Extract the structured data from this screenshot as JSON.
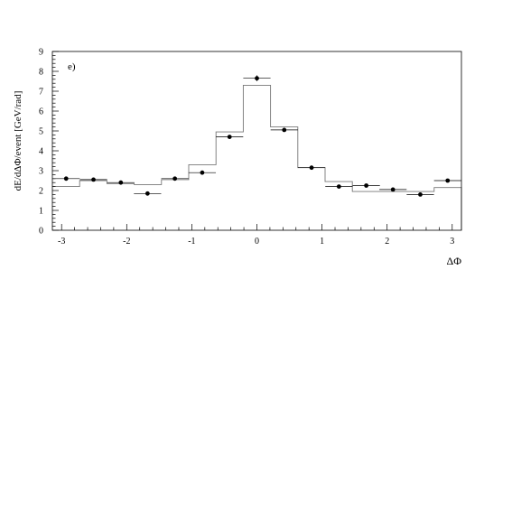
{
  "chart_data": {
    "type": "scatter",
    "panel_label": "e)",
    "xlabel": "ΔΦ",
    "ylabel": "dE/dΔΦ/event [GeV/rad]",
    "xlim": [
      -3.14159,
      3.14159
    ],
    "ylim": [
      0,
      9
    ],
    "x_ticks": [
      -3,
      -2,
      -1,
      0,
      1,
      2,
      3
    ],
    "y_ticks": [
      0,
      1,
      2,
      3,
      4,
      5,
      6,
      7,
      8,
      9
    ],
    "bin_edges": [
      -3.14159,
      -2.72271,
      -2.30383,
      -1.88496,
      -1.46608,
      -1.0472,
      -0.62832,
      -0.20944,
      0.20944,
      0.62832,
      1.0472,
      1.46608,
      1.88496,
      2.30383,
      2.72271,
      3.14159
    ],
    "histogram_values": [
      2.2,
      2.5,
      2.35,
      2.3,
      2.55,
      3.3,
      4.95,
      7.3,
      5.2,
      3.15,
      2.45,
      1.95,
      1.95,
      1.95,
      2.15
    ],
    "points": {
      "x": [
        -2.93,
        -2.51,
        -2.09,
        -1.68,
        -1.26,
        -0.84,
        -0.42,
        0.0,
        0.42,
        0.84,
        1.26,
        1.68,
        2.09,
        2.51,
        2.93
      ],
      "y": [
        2.6,
        2.55,
        2.4,
        1.85,
        2.6,
        2.9,
        4.7,
        7.65,
        5.05,
        3.15,
        2.2,
        2.25,
        2.05,
        1.8,
        2.5
      ],
      "y_err": [
        0.06,
        0.06,
        0.06,
        0.06,
        0.06,
        0.06,
        0.1,
        0.15,
        0.1,
        0.06,
        0.06,
        0.06,
        0.06,
        0.06,
        0.06
      ]
    },
    "colors": {
      "axis": "#000000",
      "histogram": "#777777",
      "points": "#000000"
    },
    "grid": false
  }
}
